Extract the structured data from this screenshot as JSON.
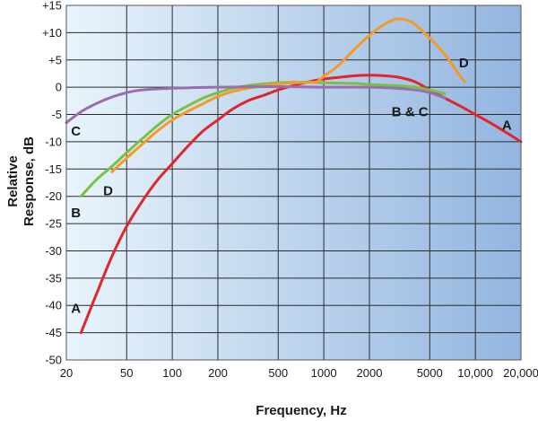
{
  "chart_data": {
    "type": "line",
    "title": "",
    "xlabel": "Frequency, Hz",
    "ylabel_lines": [
      "Relative",
      "Response, dB"
    ],
    "xscale": "log",
    "xlim": [
      20,
      20000
    ],
    "ylim": [
      -50,
      15
    ],
    "grid": true,
    "x_ticks": [
      {
        "value": 20,
        "label": "20"
      },
      {
        "value": 50,
        "label": "50"
      },
      {
        "value": 100,
        "label": "100"
      },
      {
        "value": 200,
        "label": "200"
      },
      {
        "value": 500,
        "label": "500"
      },
      {
        "value": 1000,
        "label": "1000"
      },
      {
        "value": 2000,
        "label": "2000"
      },
      {
        "value": 5000,
        "label": "5000"
      },
      {
        "value": 10000,
        "label": "10,000"
      },
      {
        "value": 20000,
        "label": "20,000"
      }
    ],
    "y_ticks": [
      {
        "value": 15,
        "label": "+15"
      },
      {
        "value": 10,
        "label": "+10"
      },
      {
        "value": 5,
        "label": "+5"
      },
      {
        "value": 0,
        "label": "0"
      },
      {
        "value": -5,
        "label": "-5"
      },
      {
        "value": -10,
        "label": "-10"
      },
      {
        "value": -15,
        "label": "-15"
      },
      {
        "value": -20,
        "label": "-20"
      },
      {
        "value": -25,
        "label": "-25"
      },
      {
        "value": -30,
        "label": "-30"
      },
      {
        "value": -35,
        "label": "-35"
      },
      {
        "value": -40,
        "label": "-40"
      },
      {
        "value": -45,
        "label": "-45"
      },
      {
        "value": -50,
        "label": "-50"
      }
    ],
    "background_gradient": [
      "#e8f4fb",
      "#93b5e0"
    ],
    "series": [
      {
        "name": "A",
        "color": "#e0252b",
        "points": [
          [
            25,
            -45
          ],
          [
            31.5,
            -38
          ],
          [
            40,
            -31
          ],
          [
            50,
            -25.5
          ],
          [
            63,
            -21
          ],
          [
            80,
            -17
          ],
          [
            100,
            -14
          ],
          [
            125,
            -11
          ],
          [
            160,
            -8
          ],
          [
            200,
            -6
          ],
          [
            250,
            -4
          ],
          [
            315,
            -2.5
          ],
          [
            400,
            -1.5
          ],
          [
            500,
            -0.5
          ],
          [
            630,
            0.3
          ],
          [
            800,
            1
          ],
          [
            1000,
            1.5
          ],
          [
            1250,
            1.8
          ],
          [
            1600,
            2.1
          ],
          [
            2000,
            2.2
          ],
          [
            2500,
            2.1
          ],
          [
            3150,
            1.8
          ],
          [
            4000,
            1
          ],
          [
            5000,
            -0.5
          ],
          [
            6300,
            -2
          ],
          [
            8000,
            -3.5
          ],
          [
            10000,
            -5
          ],
          [
            12500,
            -6.5
          ],
          [
            16000,
            -8.3
          ],
          [
            20000,
            -10
          ]
        ]
      },
      {
        "name": "B",
        "color": "#7ac143",
        "points": [
          [
            25,
            -20
          ],
          [
            31.5,
            -17
          ],
          [
            40,
            -14.5
          ],
          [
            50,
            -12
          ],
          [
            63,
            -9.5
          ],
          [
            80,
            -7
          ],
          [
            100,
            -5
          ],
          [
            125,
            -3.5
          ],
          [
            160,
            -2
          ],
          [
            200,
            -1
          ],
          [
            250,
            -0.2
          ],
          [
            315,
            0.3
          ],
          [
            400,
            0.6
          ],
          [
            500,
            0.8
          ],
          [
            630,
            0.9
          ],
          [
            800,
            0.9
          ],
          [
            1000,
            0.8
          ],
          [
            1600,
            0.7
          ],
          [
            2000,
            0.5
          ],
          [
            3000,
            0.3
          ],
          [
            4000,
            0
          ],
          [
            5000,
            -0.5
          ],
          [
            6300,
            -1.2
          ]
        ]
      },
      {
        "name": "C",
        "color": "#9a6db0",
        "points": [
          [
            20,
            -6.5
          ],
          [
            25,
            -4.5
          ],
          [
            31.5,
            -3
          ],
          [
            40,
            -1.8
          ],
          [
            50,
            -1
          ],
          [
            63,
            -0.5
          ],
          [
            100,
            -0.2
          ],
          [
            200,
            0
          ],
          [
            500,
            0.1
          ],
          [
            1000,
            0
          ],
          [
            2000,
            0
          ],
          [
            3000,
            -0.2
          ],
          [
            4000,
            -0.5
          ],
          [
            5000,
            -1
          ],
          [
            6300,
            -2
          ]
        ]
      },
      {
        "name": "D",
        "color": "#f39a2a",
        "points": [
          [
            40,
            -15.5
          ],
          [
            50,
            -13
          ],
          [
            63,
            -10.5
          ],
          [
            80,
            -8
          ],
          [
            100,
            -6
          ],
          [
            125,
            -4.5
          ],
          [
            160,
            -3
          ],
          [
            200,
            -1.7
          ],
          [
            250,
            -0.8
          ],
          [
            315,
            -0.2
          ],
          [
            400,
            0.3
          ],
          [
            500,
            0.6
          ],
          [
            630,
            0.8
          ],
          [
            800,
            0.9
          ],
          [
            900,
            1
          ],
          [
            1000,
            2
          ],
          [
            1250,
            4
          ],
          [
            1600,
            7
          ],
          [
            2000,
            9.5
          ],
          [
            2500,
            11.5
          ],
          [
            3000,
            12.5
          ],
          [
            3500,
            12.3
          ],
          [
            4000,
            11.5
          ],
          [
            5000,
            9
          ],
          [
            6300,
            6
          ],
          [
            7500,
            3
          ],
          [
            8500,
            1
          ]
        ]
      }
    ],
    "annotations": [
      {
        "text": "A",
        "series": "A",
        "anchor": [
          21.5,
          -40.5
        ]
      },
      {
        "text": "A",
        "series": "A",
        "anchor": [
          15000,
          -7
        ]
      },
      {
        "text": "B",
        "series": "B",
        "anchor": [
          21.5,
          -23
        ]
      },
      {
        "text": "C",
        "series": "C",
        "anchor": [
          21.5,
          -8
        ]
      },
      {
        "text": "D",
        "series": "D",
        "anchor": [
          35,
          -19
        ]
      },
      {
        "text": "D",
        "series": "D",
        "anchor": [
          7800,
          4.5
        ]
      },
      {
        "text": "B & C",
        "series": "B & C",
        "anchor": [
          2800,
          -4.5
        ]
      }
    ]
  }
}
